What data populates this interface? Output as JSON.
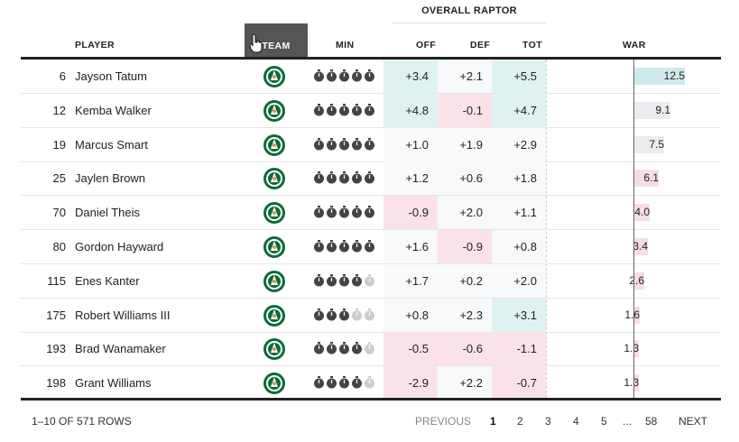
{
  "header": {
    "group_label": "OVERALL RAPTOR",
    "columns": {
      "player": "PLAYER",
      "team": "TEAM",
      "min": "MIN",
      "off": "OFF",
      "def": "DEF",
      "tot": "TOT",
      "war": "WAR"
    }
  },
  "colors": {
    "positive_tint": "#dff2f2",
    "negative_tint": "#fbe2e8",
    "war_positive": "#cfeaea",
    "war_neutral": "#ececf0",
    "war_negative": "#f7dde3",
    "team_active_bg": "#555555"
  },
  "rows": [
    {
      "rank": "6",
      "player": "Jayson Tatum",
      "min_filled": 5,
      "off": "+3.4",
      "def": "+2.1",
      "tot": "+5.5",
      "war": "12.5",
      "war_value": 12.5
    },
    {
      "rank": "12",
      "player": "Kemba Walker",
      "min_filled": 5,
      "off": "+4.8",
      "def": "-0.1",
      "tot": "+4.7",
      "war": "9.1",
      "war_value": 9.1
    },
    {
      "rank": "19",
      "player": "Marcus Smart",
      "min_filled": 5,
      "off": "+1.0",
      "def": "+1.9",
      "tot": "+2.9",
      "war": "7.5",
      "war_value": 7.5
    },
    {
      "rank": "25",
      "player": "Jaylen Brown",
      "min_filled": 5,
      "off": "+1.2",
      "def": "+0.6",
      "tot": "+1.8",
      "war": "6.1",
      "war_value": 6.1
    },
    {
      "rank": "70",
      "player": "Daniel Theis",
      "min_filled": 5,
      "off": "-0.9",
      "def": "+2.0",
      "tot": "+1.1",
      "war": "4.0",
      "war_value": 4.0
    },
    {
      "rank": "80",
      "player": "Gordon Hayward",
      "min_filled": 5,
      "off": "+1.6",
      "def": "-0.9",
      "tot": "+0.8",
      "war": "3.4",
      "war_value": 3.4
    },
    {
      "rank": "115",
      "player": "Enes Kanter",
      "min_filled": 4,
      "off": "+1.7",
      "def": "+0.2",
      "tot": "+2.0",
      "war": "2.6",
      "war_value": 2.6
    },
    {
      "rank": "175",
      "player": "Robert Williams III",
      "min_filled": 3,
      "off": "+0.8",
      "def": "+2.3",
      "tot": "+3.1",
      "war": "1.6",
      "war_value": 1.6
    },
    {
      "rank": "193",
      "player": "Brad Wanamaker",
      "min_filled": 4,
      "off": "-0.5",
      "def": "-0.6",
      "tot": "-1.1",
      "war": "1.3",
      "war_value": 1.3
    },
    {
      "rank": "198",
      "player": "Grant Williams",
      "min_filled": 4,
      "off": "-2.9",
      "def": "+2.2",
      "tot": "-0.7",
      "war": "1.3",
      "war_value": 1.3
    }
  ],
  "pagination": {
    "summary": "1–10 OF 571 ROWS",
    "previous": "PREVIOUS",
    "pages": [
      "1",
      "2",
      "3",
      "4",
      "5"
    ],
    "ellipsis": "...",
    "last": "58",
    "next": "NEXT"
  }
}
